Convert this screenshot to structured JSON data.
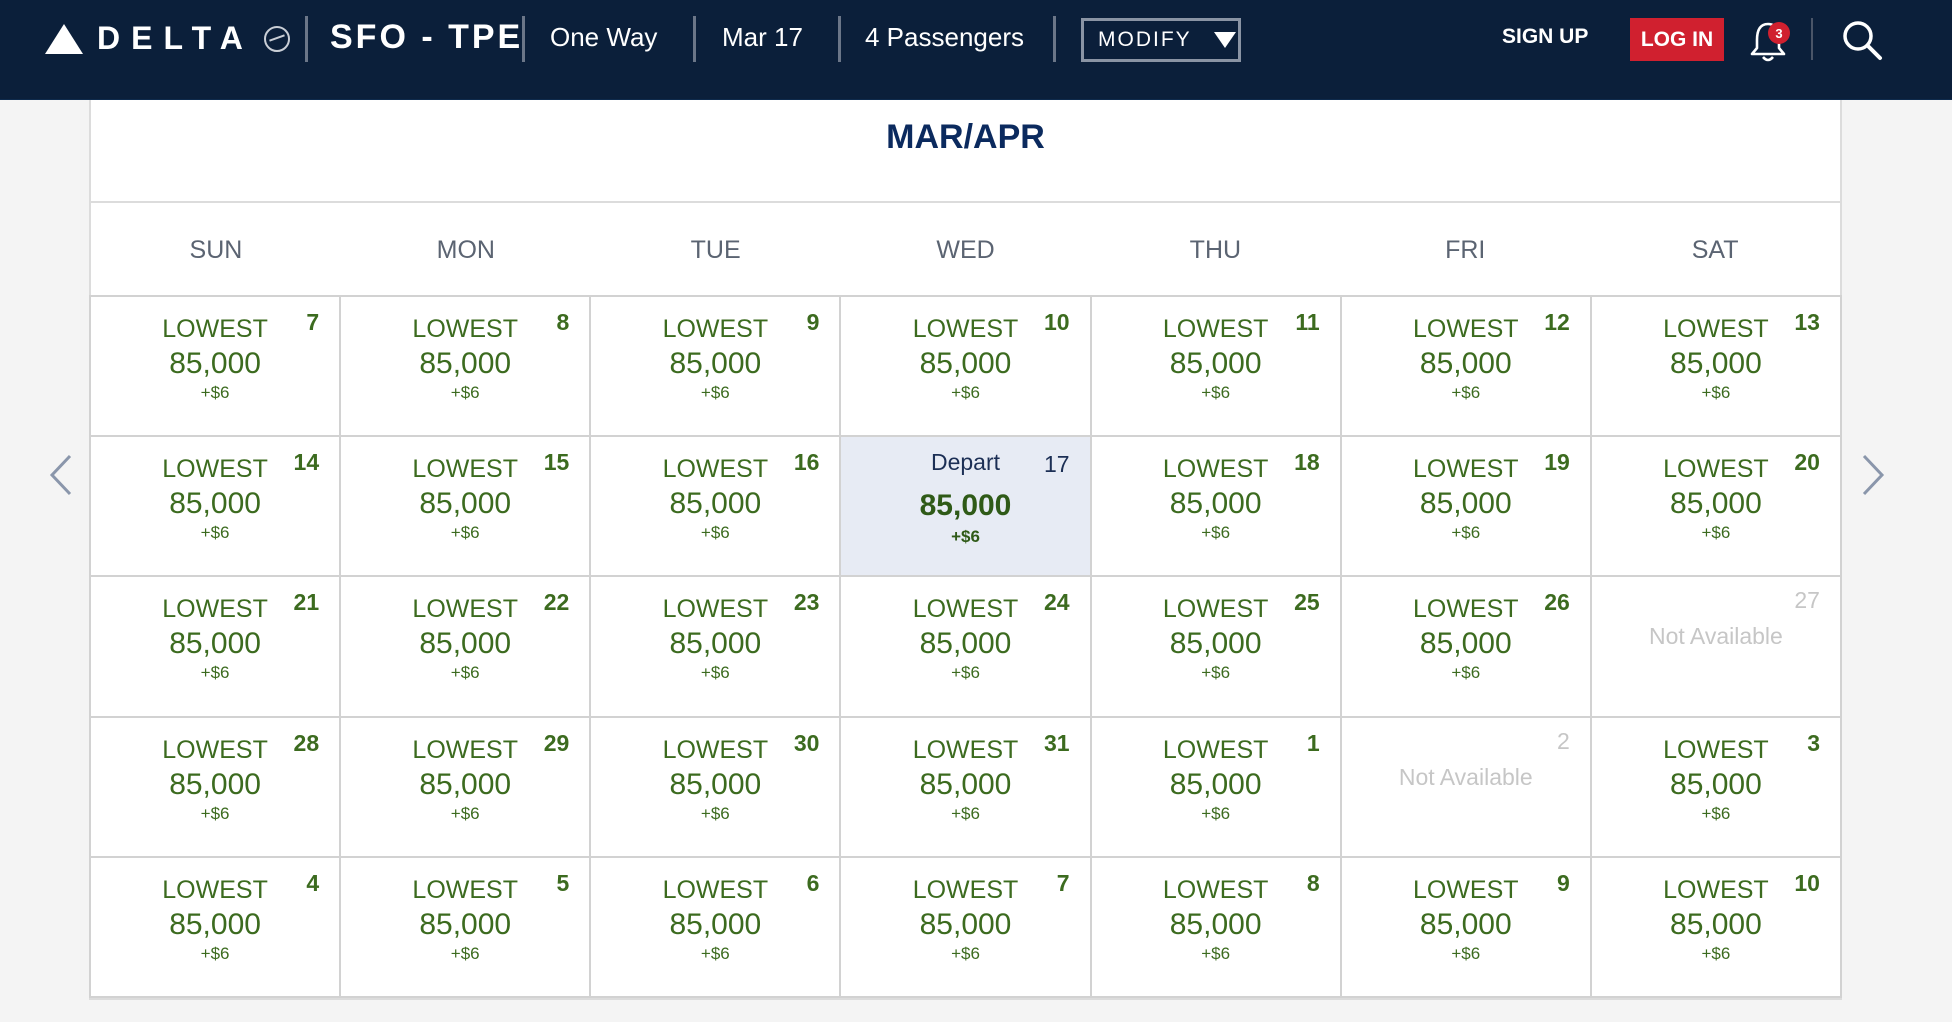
{
  "header": {
    "brand": "DELTA",
    "route": "SFO - TPE",
    "trip_type": "One Way",
    "date": "Mar 17",
    "passengers": "4 Passengers",
    "modify_label": "MODIFY",
    "signup_label": "SIGN UP",
    "login_label": "LOG IN",
    "notification_count": "3",
    "colors": {
      "nav_bg": "#0b1f3a",
      "login_bg": "#d0202f"
    }
  },
  "calendar": {
    "month_title": "MAR/APR",
    "weekdays": [
      "SUN",
      "MON",
      "TUE",
      "WED",
      "THU",
      "FRI",
      "SAT"
    ],
    "colors": {
      "price": "#3c6b1f",
      "selected_bg": "#e7ebf4",
      "unavailable": "#c6c6c6"
    },
    "weeks": [
      [
        {
          "day": "7",
          "label": "LOWEST",
          "miles": "85,000",
          "fee": "+$6"
        },
        {
          "day": "8",
          "label": "LOWEST",
          "miles": "85,000",
          "fee": "+$6"
        },
        {
          "day": "9",
          "label": "LOWEST",
          "miles": "85,000",
          "fee": "+$6"
        },
        {
          "day": "10",
          "label": "LOWEST",
          "miles": "85,000",
          "fee": "+$6"
        },
        {
          "day": "11",
          "label": "LOWEST",
          "miles": "85,000",
          "fee": "+$6"
        },
        {
          "day": "12",
          "label": "LOWEST",
          "miles": "85,000",
          "fee": "+$6"
        },
        {
          "day": "13",
          "label": "LOWEST",
          "miles": "85,000",
          "fee": "+$6"
        }
      ],
      [
        {
          "day": "14",
          "label": "LOWEST",
          "miles": "85,000",
          "fee": "+$6"
        },
        {
          "day": "15",
          "label": "LOWEST",
          "miles": "85,000",
          "fee": "+$6"
        },
        {
          "day": "16",
          "label": "LOWEST",
          "miles": "85,000",
          "fee": "+$6"
        },
        {
          "day": "17",
          "label": "Depart",
          "miles": "85,000",
          "fee": "+$6",
          "selected": true
        },
        {
          "day": "18",
          "label": "LOWEST",
          "miles": "85,000",
          "fee": "+$6"
        },
        {
          "day": "19",
          "label": "LOWEST",
          "miles": "85,000",
          "fee": "+$6"
        },
        {
          "day": "20",
          "label": "LOWEST",
          "miles": "85,000",
          "fee": "+$6"
        }
      ],
      [
        {
          "day": "21",
          "label": "LOWEST",
          "miles": "85,000",
          "fee": "+$6"
        },
        {
          "day": "22",
          "label": "LOWEST",
          "miles": "85,000",
          "fee": "+$6"
        },
        {
          "day": "23",
          "label": "LOWEST",
          "miles": "85,000",
          "fee": "+$6"
        },
        {
          "day": "24",
          "label": "LOWEST",
          "miles": "85,000",
          "fee": "+$6"
        },
        {
          "day": "25",
          "label": "LOWEST",
          "miles": "85,000",
          "fee": "+$6"
        },
        {
          "day": "26",
          "label": "LOWEST",
          "miles": "85,000",
          "fee": "+$6"
        },
        {
          "day": "27",
          "label": "Not Available",
          "available": false
        }
      ],
      [
        {
          "day": "28",
          "label": "LOWEST",
          "miles": "85,000",
          "fee": "+$6"
        },
        {
          "day": "29",
          "label": "LOWEST",
          "miles": "85,000",
          "fee": "+$6"
        },
        {
          "day": "30",
          "label": "LOWEST",
          "miles": "85,000",
          "fee": "+$6"
        },
        {
          "day": "31",
          "label": "LOWEST",
          "miles": "85,000",
          "fee": "+$6"
        },
        {
          "day": "1",
          "label": "LOWEST",
          "miles": "85,000",
          "fee": "+$6"
        },
        {
          "day": "2",
          "label": "Not Available",
          "available": false
        },
        {
          "day": "3",
          "label": "LOWEST",
          "miles": "85,000",
          "fee": "+$6"
        }
      ],
      [
        {
          "day": "4",
          "label": "LOWEST",
          "miles": "85,000",
          "fee": "+$6"
        },
        {
          "day": "5",
          "label": "LOWEST",
          "miles": "85,000",
          "fee": "+$6"
        },
        {
          "day": "6",
          "label": "LOWEST",
          "miles": "85,000",
          "fee": "+$6"
        },
        {
          "day": "7",
          "label": "LOWEST",
          "miles": "85,000",
          "fee": "+$6"
        },
        {
          "day": "8",
          "label": "LOWEST",
          "miles": "85,000",
          "fee": "+$6"
        },
        {
          "day": "9",
          "label": "LOWEST",
          "miles": "85,000",
          "fee": "+$6"
        },
        {
          "day": "10",
          "label": "LOWEST",
          "miles": "85,000",
          "fee": "+$6"
        }
      ]
    ]
  },
  "icons": {
    "logo": "delta-widget-icon",
    "bell": "bell-icon",
    "search": "search-icon",
    "prev": "chevron-left-icon",
    "next": "chevron-right-icon"
  }
}
